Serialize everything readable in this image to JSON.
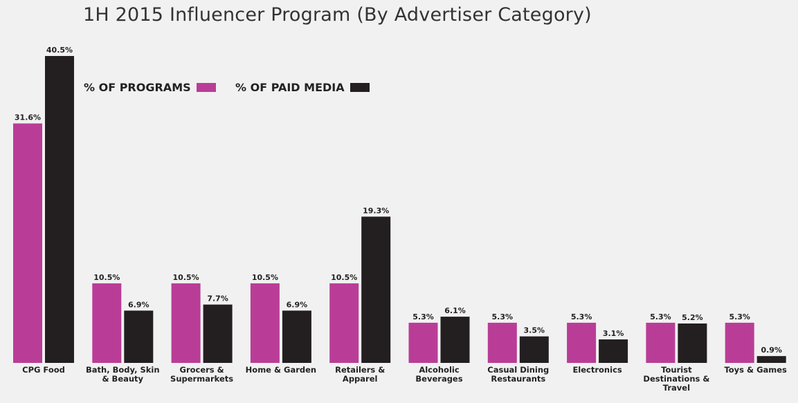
{
  "chart_data": {
    "type": "bar",
    "title": "1H 2015 Influencer Program (By Advertiser Category)",
    "xlabel": "",
    "ylabel": "",
    "ylim": [
      0,
      42
    ],
    "grid": false,
    "legend_position": "top-left",
    "categories": [
      "CPG Food",
      "Bath, Body, Skin & Beauty",
      "Grocers & Supermarkets",
      "Home & Garden",
      "Retailers & Apparel",
      "Alcoholic Beverages",
      "Casual Dining Restaurants",
      "Electronics",
      "Tourist Destinations & Travel",
      "Toys & Games"
    ],
    "category_lines": [
      [
        "CPG Food"
      ],
      [
        "Bath, Body, Skin",
        "& Beauty"
      ],
      [
        "Grocers &",
        "Supermarkets"
      ],
      [
        "Home & Garden"
      ],
      [
        "Retailers &",
        "Apparel"
      ],
      [
        "Alcoholic",
        "Beverages"
      ],
      [
        "Casual Dining",
        "Restaurants"
      ],
      [
        "Electronics"
      ],
      [
        "Tourist",
        "Destinations &",
        "Travel"
      ],
      [
        "Toys & Games"
      ]
    ],
    "series": [
      {
        "name": "% OF PROGRAMS",
        "color": "#b93d97",
        "values": [
          31.6,
          10.5,
          10.5,
          10.5,
          10.5,
          5.3,
          5.3,
          5.3,
          5.3,
          5.3
        ],
        "labels": [
          "31.6%",
          "10.5%",
          "10.5%",
          "10.5%",
          "10.5%",
          "5.3%",
          "5.3%",
          "5.3%",
          "5.3%",
          "5.3%"
        ]
      },
      {
        "name": "% OF PAID MEDIA",
        "color": "#231f20",
        "values": [
          40.5,
          6.9,
          7.7,
          6.9,
          19.3,
          6.1,
          3.5,
          3.1,
          5.2,
          0.9
        ],
        "labels": [
          "40.5%",
          "6.9%",
          "7.7%",
          "6.9%",
          "19.3%",
          "6.1%",
          "3.5%",
          "3.1%",
          "5.2%",
          "0.9%"
        ]
      }
    ]
  }
}
